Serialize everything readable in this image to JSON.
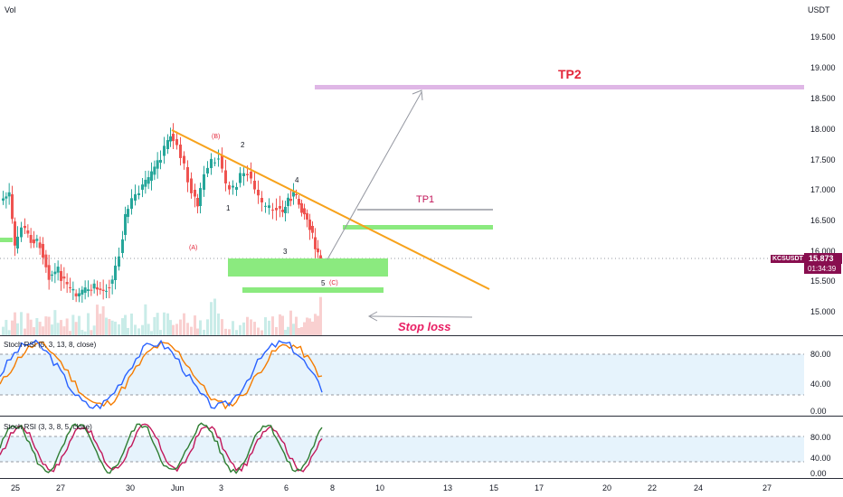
{
  "header": {
    "vol_label": "Vol",
    "currency": "USDT"
  },
  "price_axis": {
    "ticks": [
      "19.500",
      "19.000",
      "18.500",
      "18.000",
      "17.500",
      "17.000",
      "16.500",
      "16.000",
      "15.500",
      "15.000"
    ],
    "symbol": "KCSUSDT",
    "last_price": "15.873",
    "countdown": "01:34:39",
    "symbol_color": "#880e4f"
  },
  "annotations": {
    "tp2": "TP2",
    "tp1": "TP1",
    "stop_loss": "Stop loss",
    "wave_a": "(A)",
    "wave_b": "(B)",
    "wave_c": "(C)",
    "w1": "1",
    "w2": "2",
    "w3": "3",
    "w4": "4",
    "w5": "5"
  },
  "indicators": {
    "rsi1": {
      "label": "Stoch RSI (5, 3, 13, 8, close)",
      "ticks": [
        "80.00",
        "40.00",
        "0.00"
      ]
    },
    "rsi2": {
      "label": "Stoch RSI (3, 3, 8, 5, close)",
      "ticks": [
        "80.00",
        "40.00",
        "0.00"
      ]
    }
  },
  "time_axis": [
    "25",
    "27",
    "30",
    "Jun",
    "3",
    "6",
    "8",
    "10",
    "13",
    "15",
    "17",
    "20",
    "22",
    "24",
    "27"
  ],
  "colors": {
    "up": "#26a69a",
    "down": "#ef5350",
    "trend": "#f7a21b",
    "zone": "#8bea7f",
    "tp2_band": "#dfb7e6",
    "tp_text": "#e3263a",
    "stop_text": "#e91e63",
    "rsi_k": "#2962ff",
    "rsi_d": "#f57c00",
    "rsi2_k": "#2e7d32",
    "rsi2_d": "#c2185b",
    "rsi_band": "#e6f3fc"
  }
}
